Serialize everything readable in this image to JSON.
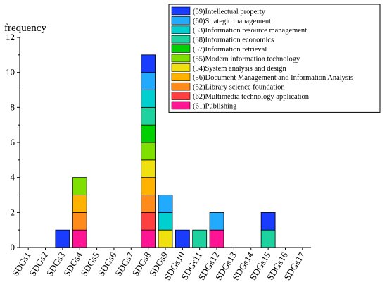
{
  "chart_data": {
    "type": "bar",
    "stacked": true,
    "ylabel": "frequency",
    "ylim": [
      0,
      12
    ],
    "yticks": [
      "0",
      "2",
      "4",
      "6",
      "8",
      "10",
      "12"
    ],
    "categories": [
      "SDGs1",
      "SDGs2",
      "SDGs3",
      "SDGs4",
      "SDGs5",
      "SDGs6",
      "SDGs7",
      "SDGs8",
      "SDGs9",
      "SDGs10",
      "SDGs11",
      "SDGs12",
      "SDGs13",
      "SDGs14",
      "SDGs15",
      "SDGs16",
      "SDGs17"
    ],
    "legend_position": "top-right",
    "grid": false,
    "series": [
      {
        "name": "(61)Publishing",
        "color": "#ff1493",
        "values": [
          0,
          0,
          0,
          1,
          0,
          0,
          0,
          1,
          0,
          0,
          0,
          1,
          0,
          0,
          0,
          0,
          0
        ]
      },
      {
        "name": "(62)Multimedia technology application",
        "color": "#ff4040",
        "values": [
          0,
          0,
          0,
          0,
          0,
          0,
          0,
          1,
          0,
          0,
          0,
          0,
          0,
          0,
          0,
          0,
          0
        ]
      },
      {
        "name": "(52)Library science foundation",
        "color": "#ff8c1a",
        "values": [
          0,
          0,
          0,
          1,
          0,
          0,
          0,
          1,
          0,
          0,
          0,
          0,
          0,
          0,
          0,
          0,
          0
        ]
      },
      {
        "name": "(56)Document Management and Information Analysis",
        "color": "#ffb300",
        "values": [
          0,
          0,
          0,
          1,
          0,
          0,
          0,
          1,
          0,
          0,
          0,
          0,
          0,
          0,
          0,
          0,
          0
        ]
      },
      {
        "name": "(54)System analysis and design",
        "color": "#f0e010",
        "values": [
          0,
          0,
          0,
          0,
          0,
          0,
          0,
          1,
          1,
          0,
          0,
          0,
          0,
          0,
          0,
          0,
          0
        ]
      },
      {
        "name": "(55)Modern information technology",
        "color": "#7fe000",
        "values": [
          0,
          0,
          0,
          1,
          0,
          0,
          0,
          1,
          0,
          0,
          0,
          0,
          0,
          0,
          0,
          0,
          0
        ]
      },
      {
        "name": "(57)Information retrieval",
        "color": "#00d000",
        "values": [
          0,
          0,
          0,
          0,
          0,
          0,
          0,
          1,
          0,
          0,
          0,
          0,
          0,
          0,
          0,
          0,
          0
        ]
      },
      {
        "name": "(58)Information economics",
        "color": "#1ed2a0",
        "values": [
          0,
          0,
          0,
          0,
          0,
          0,
          0,
          1,
          0,
          0,
          1,
          0,
          0,
          0,
          1,
          0,
          0
        ]
      },
      {
        "name": "(53)Information resource management",
        "color": "#00cfd0",
        "values": [
          0,
          0,
          0,
          0,
          0,
          0,
          0,
          1,
          1,
          0,
          0,
          0,
          0,
          0,
          0,
          0,
          0
        ]
      },
      {
        "name": "(60)Strategic management",
        "color": "#22aaff",
        "values": [
          0,
          0,
          0,
          0,
          0,
          0,
          0,
          1,
          1,
          0,
          0,
          1,
          0,
          0,
          0,
          0,
          0
        ]
      },
      {
        "name": "(59)Intellectual property",
        "color": "#1a3cff",
        "values": [
          0,
          0,
          1,
          0,
          0,
          0,
          0,
          1,
          0,
          1,
          0,
          0,
          0,
          0,
          1,
          0,
          0
        ]
      }
    ]
  }
}
